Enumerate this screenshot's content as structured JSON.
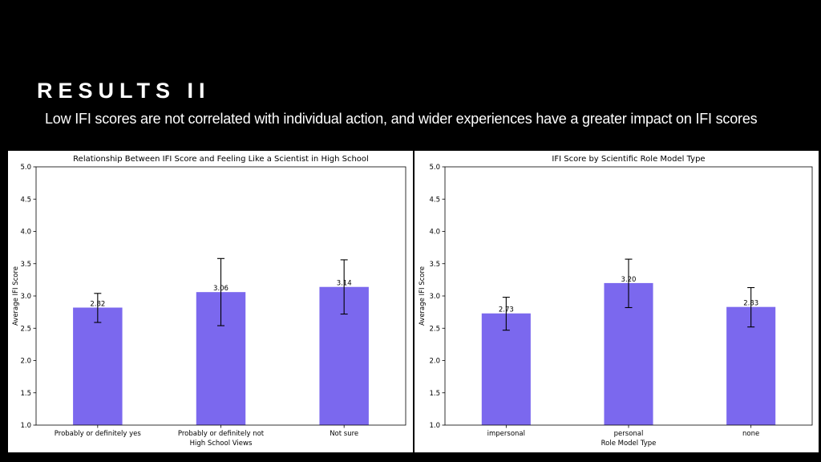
{
  "slide": {
    "title": "RESULTS II",
    "subtitle": "Low IFI scores are not correlated with individual action, and wider experiences have a greater impact on IFI scores"
  },
  "colors": {
    "bar": "#7b68ee",
    "background": "#000000",
    "panel": "#ffffff"
  },
  "chart_data": [
    {
      "type": "bar",
      "title": "Relationship Between IFI Score and Feeling Like a Scientist in High School",
      "xlabel": "High School Views",
      "ylabel": "Average IFI Score",
      "ylim": [
        1.0,
        5.0
      ],
      "yticks": [
        "1.0",
        "1.5",
        "2.0",
        "2.5",
        "3.0",
        "3.5",
        "4.0",
        "4.5",
        "5.0"
      ],
      "categories": [
        "Probably or definitely yes",
        "Probably or definitely not",
        "Not sure"
      ],
      "values": [
        2.82,
        3.06,
        3.14
      ],
      "labels": [
        "2.82",
        "3.06",
        "3.14"
      ],
      "error_low": [
        2.59,
        2.54,
        2.72
      ],
      "error_high": [
        3.04,
        3.58,
        3.56
      ],
      "grid": false
    },
    {
      "type": "bar",
      "title": "IFI Score by Scientific Role Model Type",
      "xlabel": "Role Model Type",
      "ylabel": "Average IFI Score",
      "ylim": [
        1.0,
        5.0
      ],
      "yticks": [
        "1.0",
        "1.5",
        "2.0",
        "2.5",
        "3.0",
        "3.5",
        "4.0",
        "4.5",
        "5.0"
      ],
      "categories": [
        "impersonal",
        "personal",
        "none"
      ],
      "values": [
        2.73,
        3.2,
        2.83
      ],
      "labels": [
        "2.73",
        "3.20",
        "2.83"
      ],
      "error_low": [
        2.47,
        2.82,
        2.52
      ],
      "error_high": [
        2.98,
        3.57,
        3.13
      ],
      "grid": false
    }
  ]
}
